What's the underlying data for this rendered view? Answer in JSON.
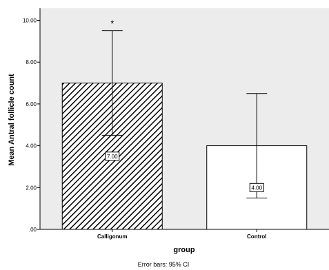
{
  "chart_data": {
    "type": "bar",
    "categories": [
      "Calligonum",
      "Control"
    ],
    "values": [
      7.0,
      4.0
    ],
    "error_lower": [
      4.5,
      1.5
    ],
    "error_upper": [
      9.5,
      6.5
    ],
    "data_labels": [
      "7.00",
      "4.00"
    ],
    "annotations": [
      "*",
      ""
    ],
    "bar_fills": [
      "diagonal-hatch",
      "white"
    ],
    "xlabel": "group",
    "ylabel": "Mean Antral follicle count",
    "ylim": [
      0,
      10
    ],
    "yticks": [
      0,
      2,
      4,
      6,
      8,
      10
    ],
    "ytick_labels": [
      ".00",
      "2.00",
      "4.00",
      "6.00",
      "8.00",
      "10.00"
    ],
    "footnote": "Error bars: 95% CI",
    "grid": false,
    "legend": "none",
    "colors": {
      "plot_bg": "#ececec",
      "bar_stroke": "#000000",
      "hatch": "#000000",
      "bar_white": "#ffffff"
    }
  }
}
